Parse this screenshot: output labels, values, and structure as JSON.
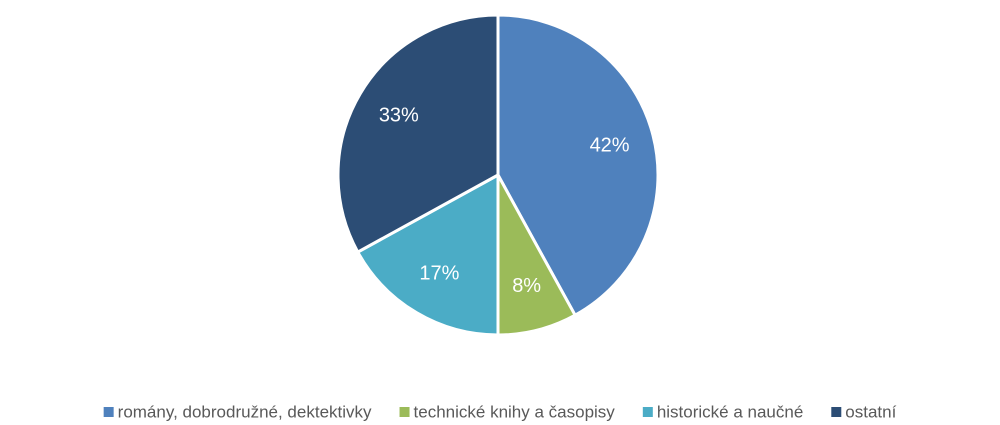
{
  "chart_data": {
    "type": "pie",
    "categories": [
      "romány, dobrodružné, dektektivky",
      "technické knihy a časopisy",
      "historické a naučné",
      "ostatní"
    ],
    "values": [
      42,
      8,
      17,
      33
    ],
    "value_labels": [
      "42%",
      "8%",
      "17%",
      "33%"
    ],
    "colors": [
      "#4f81bd",
      "#9bbb59",
      "#4bacc6",
      "#2c4d75"
    ],
    "legend": "bottom"
  }
}
